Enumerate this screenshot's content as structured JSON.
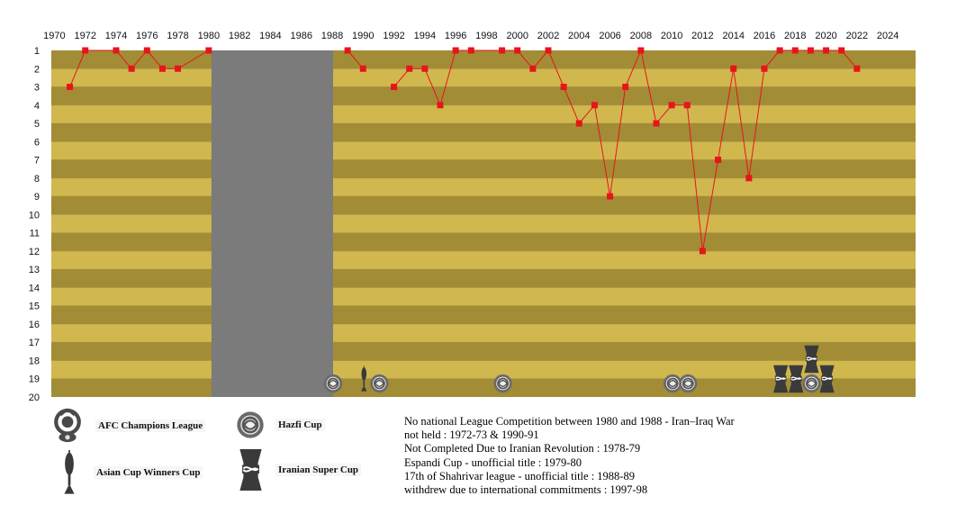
{
  "chart_data": {
    "type": "line",
    "x": [
      1971,
      1972,
      1974,
      1975,
      1976,
      1977,
      1978,
      1980,
      1989,
      1990,
      1992,
      1993,
      1994,
      1995,
      1996,
      1997,
      1999,
      2000,
      2001,
      2002,
      2003,
      2004,
      2005,
      2006,
      2007,
      2008,
      2009,
      2010,
      2011,
      2012,
      2013,
      2014,
      2015,
      2016,
      2017,
      2018,
      2019,
      2020,
      2021,
      2022
    ],
    "y": [
      3,
      1,
      1,
      2,
      1,
      2,
      2,
      1,
      1,
      2,
      3,
      2,
      2,
      4,
      1,
      1,
      1,
      1,
      2,
      1,
      3,
      5,
      4,
      9,
      3,
      1,
      5,
      4,
      4,
      12,
      7,
      2,
      8,
      2,
      1,
      1,
      1,
      1,
      1,
      2
    ],
    "segments": [
      [
        0,
        7
      ],
      [
        8,
        9
      ],
      [
        10,
        39
      ]
    ],
    "xlim": [
      1969.8,
      2025.8
    ],
    "x_ticks": [
      "1970",
      "1972",
      "1974",
      "1976",
      "1978",
      "1980",
      "1982",
      "1984",
      "1986",
      "1988",
      "1990",
      "1992",
      "1994",
      "1996",
      "1998",
      "2000",
      "2002",
      "2004",
      "2006",
      "2008",
      "2010",
      "2012",
      "2014",
      "2016",
      "2018",
      "2020",
      "2022",
      "2024"
    ],
    "ylim": [
      1,
      20
    ],
    "y_inverted": true,
    "y_ticks": [
      "1",
      "2",
      "3",
      "4",
      "5",
      "6",
      "7",
      "8",
      "9",
      "10",
      "11",
      "12",
      "13",
      "14",
      "15",
      "16",
      "17",
      "18",
      "19",
      "20"
    ],
    "gap_span": [
      1980,
      1988
    ],
    "series_color": "#e8141b",
    "band_colors": [
      "#a28c35",
      "#d0b84e"
    ],
    "gap_color": "#7b7b7b",
    "trophies": [
      {
        "year": 1988,
        "type": "hazfi"
      },
      {
        "year": 1990,
        "type": "asian-cup-winners"
      },
      {
        "year": 1991,
        "type": "hazfi"
      },
      {
        "year": 1999,
        "type": "hazfi"
      },
      {
        "year": 2010,
        "type": "hazfi"
      },
      {
        "year": 2011,
        "type": "hazfi"
      },
      {
        "year": 2017,
        "type": "super-cup"
      },
      {
        "year": 2018,
        "type": "super-cup"
      },
      {
        "year": 2019,
        "type": "super-cup",
        "stack": 1
      },
      {
        "year": 2019,
        "type": "hazfi"
      },
      {
        "year": 2020,
        "type": "super-cup"
      }
    ]
  },
  "legend": {
    "afc": "AFC Champions League",
    "cup_winners": "Asian Cup Winners Cup",
    "hazfi": "Hazfi Cup",
    "super_cup": "Iranian Super Cup"
  },
  "notes": [
    "No national League Competition between 1980 and 1988 - Iran–Iraq War",
    "not held : 1972-73 & 1990-91",
    "Not Completed Due to Iranian Revolution : 1978-79",
    "Espandi Cup - unofficial title : 1979-80",
    "17th of Shahrivar league - unofficial title : 1988-89",
    "withdrew due to international commitments  : 1997-98"
  ]
}
